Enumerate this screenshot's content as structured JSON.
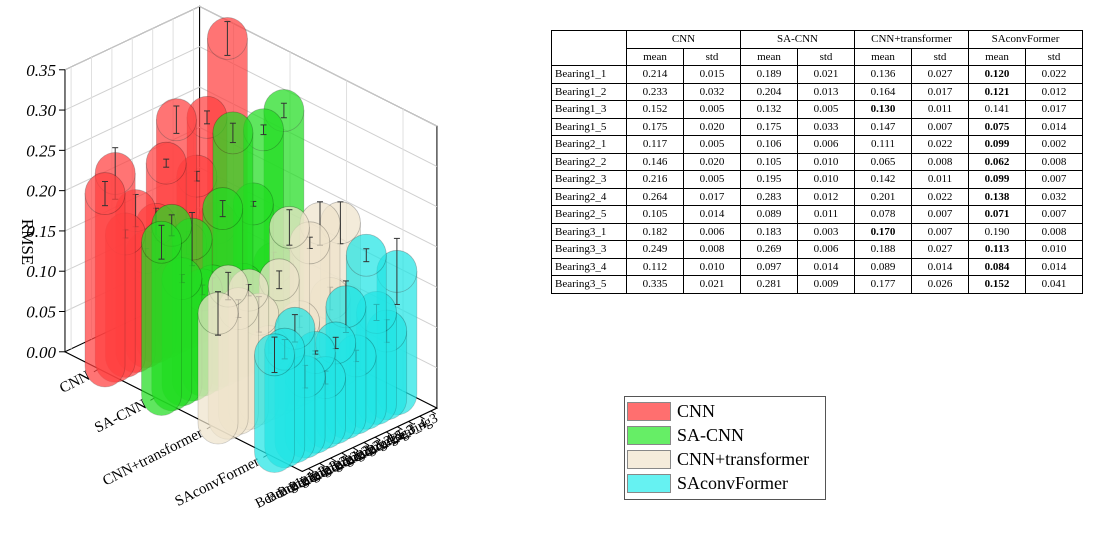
{
  "chart_data": {
    "type": "bar",
    "subtype": "3d-cylinder-bar",
    "zlabel": "RMSE",
    "zlim": [
      0,
      0.35
    ],
    "zticks": [
      "0.00",
      "0.05",
      "0.10",
      "0.15",
      "0.20",
      "0.25",
      "0.30",
      "0.35"
    ],
    "models": [
      "CNN",
      "SA-CNN",
      "CNN+transformer",
      "SAconvFormer"
    ],
    "bearings": [
      "Bearing1_1",
      "Bearing1_2",
      "Bearing1_3",
      "Bearing1_5",
      "Bearing2_1",
      "Bearing2_2",
      "Bearing2_3",
      "Bearing2_4",
      "Bearing2_5",
      "Bearing3_1",
      "Bearing3_3",
      "Bearing3_4",
      "Bearing3_5"
    ],
    "bearing_axis_labels": [
      "Bearing1_1",
      "Bearing1_2",
      "Bearing1_3",
      "Bearing1_5",
      "Bearing2_1",
      "Bearing2_2",
      "Bearing2_3",
      "Bearing2_4",
      "Bearing2_5",
      "Bearing3_3",
      "Bearing3_4",
      "Bearing3"
    ],
    "series": [
      {
        "name": "CNN",
        "color": "#ff4040",
        "mean": [
          0.214,
          0.233,
          0.152,
          0.175,
          0.117,
          0.146,
          0.216,
          0.264,
          0.105,
          0.182,
          0.249,
          0.112,
          0.335
        ],
        "std": [
          0.015,
          0.032,
          0.005,
          0.02,
          0.005,
          0.02,
          0.005,
          0.017,
          0.014,
          0.006,
          0.008,
          0.01,
          0.021
        ]
      },
      {
        "name": "SA-CNN",
        "color": "#22dd22",
        "mean": [
          0.189,
          0.204,
          0.132,
          0.175,
          0.106,
          0.105,
          0.195,
          0.283,
          0.089,
          0.183,
          0.269,
          0.097,
          0.281
        ],
        "std": [
          0.021,
          0.013,
          0.005,
          0.033,
          0.006,
          0.01,
          0.01,
          0.012,
          0.011,
          0.003,
          0.006,
          0.014,
          0.009
        ]
      },
      {
        "name": "CNN+transformer",
        "color": "#efe4cc",
        "mean": [
          0.136,
          0.164,
          0.13,
          0.147,
          0.111,
          0.065,
          0.142,
          0.201,
          0.078,
          0.17,
          0.188,
          0.089,
          0.177
        ],
        "std": [
          0.027,
          0.017,
          0.011,
          0.007,
          0.022,
          0.008,
          0.011,
          0.022,
          0.007,
          0.007,
          0.027,
          0.014,
          0.026
        ]
      },
      {
        "name": "SAconvFormer",
        "color": "#22e5e5",
        "mean": [
          0.12,
          0.121,
          0.141,
          0.075,
          0.099,
          0.062,
          0.099,
          0.138,
          0.071,
          0.19,
          0.113,
          0.084,
          0.152
        ],
        "std": [
          0.022,
          0.012,
          0.017,
          0.014,
          0.002,
          0.008,
          0.007,
          0.032,
          0.007,
          0.008,
          0.01,
          0.014,
          0.041
        ]
      }
    ]
  },
  "table": {
    "groups": [
      "CNN",
      "SA-CNN",
      "CNN+transformer",
      "SAconvFormer"
    ],
    "subheaders": [
      "mean",
      "std"
    ],
    "rows": [
      {
        "label": "Bearing1_1",
        "values": [
          "0.214",
          "0.015",
          "0.189",
          "0.021",
          "0.136",
          "0.027",
          "0.120",
          "0.022"
        ],
        "best": 6
      },
      {
        "label": "Bearing1_2",
        "values": [
          "0.233",
          "0.032",
          "0.204",
          "0.013",
          "0.164",
          "0.017",
          "0.121",
          "0.012"
        ],
        "best": 6
      },
      {
        "label": "Bearing1_3",
        "values": [
          "0.152",
          "0.005",
          "0.132",
          "0.005",
          "0.130",
          "0.011",
          "0.141",
          "0.017"
        ],
        "best": 4
      },
      {
        "label": "Bearing1_5",
        "values": [
          "0.175",
          "0.020",
          "0.175",
          "0.033",
          "0.147",
          "0.007",
          "0.075",
          "0.014"
        ],
        "best": 6
      },
      {
        "label": "Bearing2_1",
        "values": [
          "0.117",
          "0.005",
          "0.106",
          "0.006",
          "0.111",
          "0.022",
          "0.099",
          "0.002"
        ],
        "best": 6
      },
      {
        "label": "Bearing2_2",
        "values": [
          "0.146",
          "0.020",
          "0.105",
          "0.010",
          "0.065",
          "0.008",
          "0.062",
          "0.008"
        ],
        "best": 6
      },
      {
        "label": "Bearing2_3",
        "values": [
          "0.216",
          "0.005",
          "0.195",
          "0.010",
          "0.142",
          "0.011",
          "0.099",
          "0.007"
        ],
        "best": 6
      },
      {
        "label": "Bearing2_4",
        "values": [
          "0.264",
          "0.017",
          "0.283",
          "0.012",
          "0.201",
          "0.022",
          "0.138",
          "0.032"
        ],
        "best": 6
      },
      {
        "label": "Bearing2_5",
        "values": [
          "0.105",
          "0.014",
          "0.089",
          "0.011",
          "0.078",
          "0.007",
          "0.071",
          "0.007"
        ],
        "best": 6
      },
      {
        "label": "Bearing3_1",
        "values": [
          "0.182",
          "0.006",
          "0.183",
          "0.003",
          "0.170",
          "0.007",
          "0.190",
          "0.008"
        ],
        "best": 4
      },
      {
        "label": "Bearing3_3",
        "values": [
          "0.249",
          "0.008",
          "0.269",
          "0.006",
          "0.188",
          "0.027",
          "0.113",
          "0.010"
        ],
        "best": 6
      },
      {
        "label": "Bearing3_4",
        "values": [
          "0.112",
          "0.010",
          "0.097",
          "0.014",
          "0.089",
          "0.014",
          "0.084",
          "0.014"
        ],
        "best": 6
      },
      {
        "label": "Bearing3_5",
        "values": [
          "0.335",
          "0.021",
          "0.281",
          "0.009",
          "0.177",
          "0.026",
          "0.152",
          "0.041"
        ],
        "best": 6
      }
    ]
  },
  "legend": [
    {
      "label": "CNN",
      "color": "#ff6f6f"
    },
    {
      "label": "SA-CNN",
      "color": "#66ee66"
    },
    {
      "label": "CNN+transformer",
      "color": "#f5ecdb"
    },
    {
      "label": "SAconvFormer",
      "color": "#66f2f2"
    }
  ]
}
